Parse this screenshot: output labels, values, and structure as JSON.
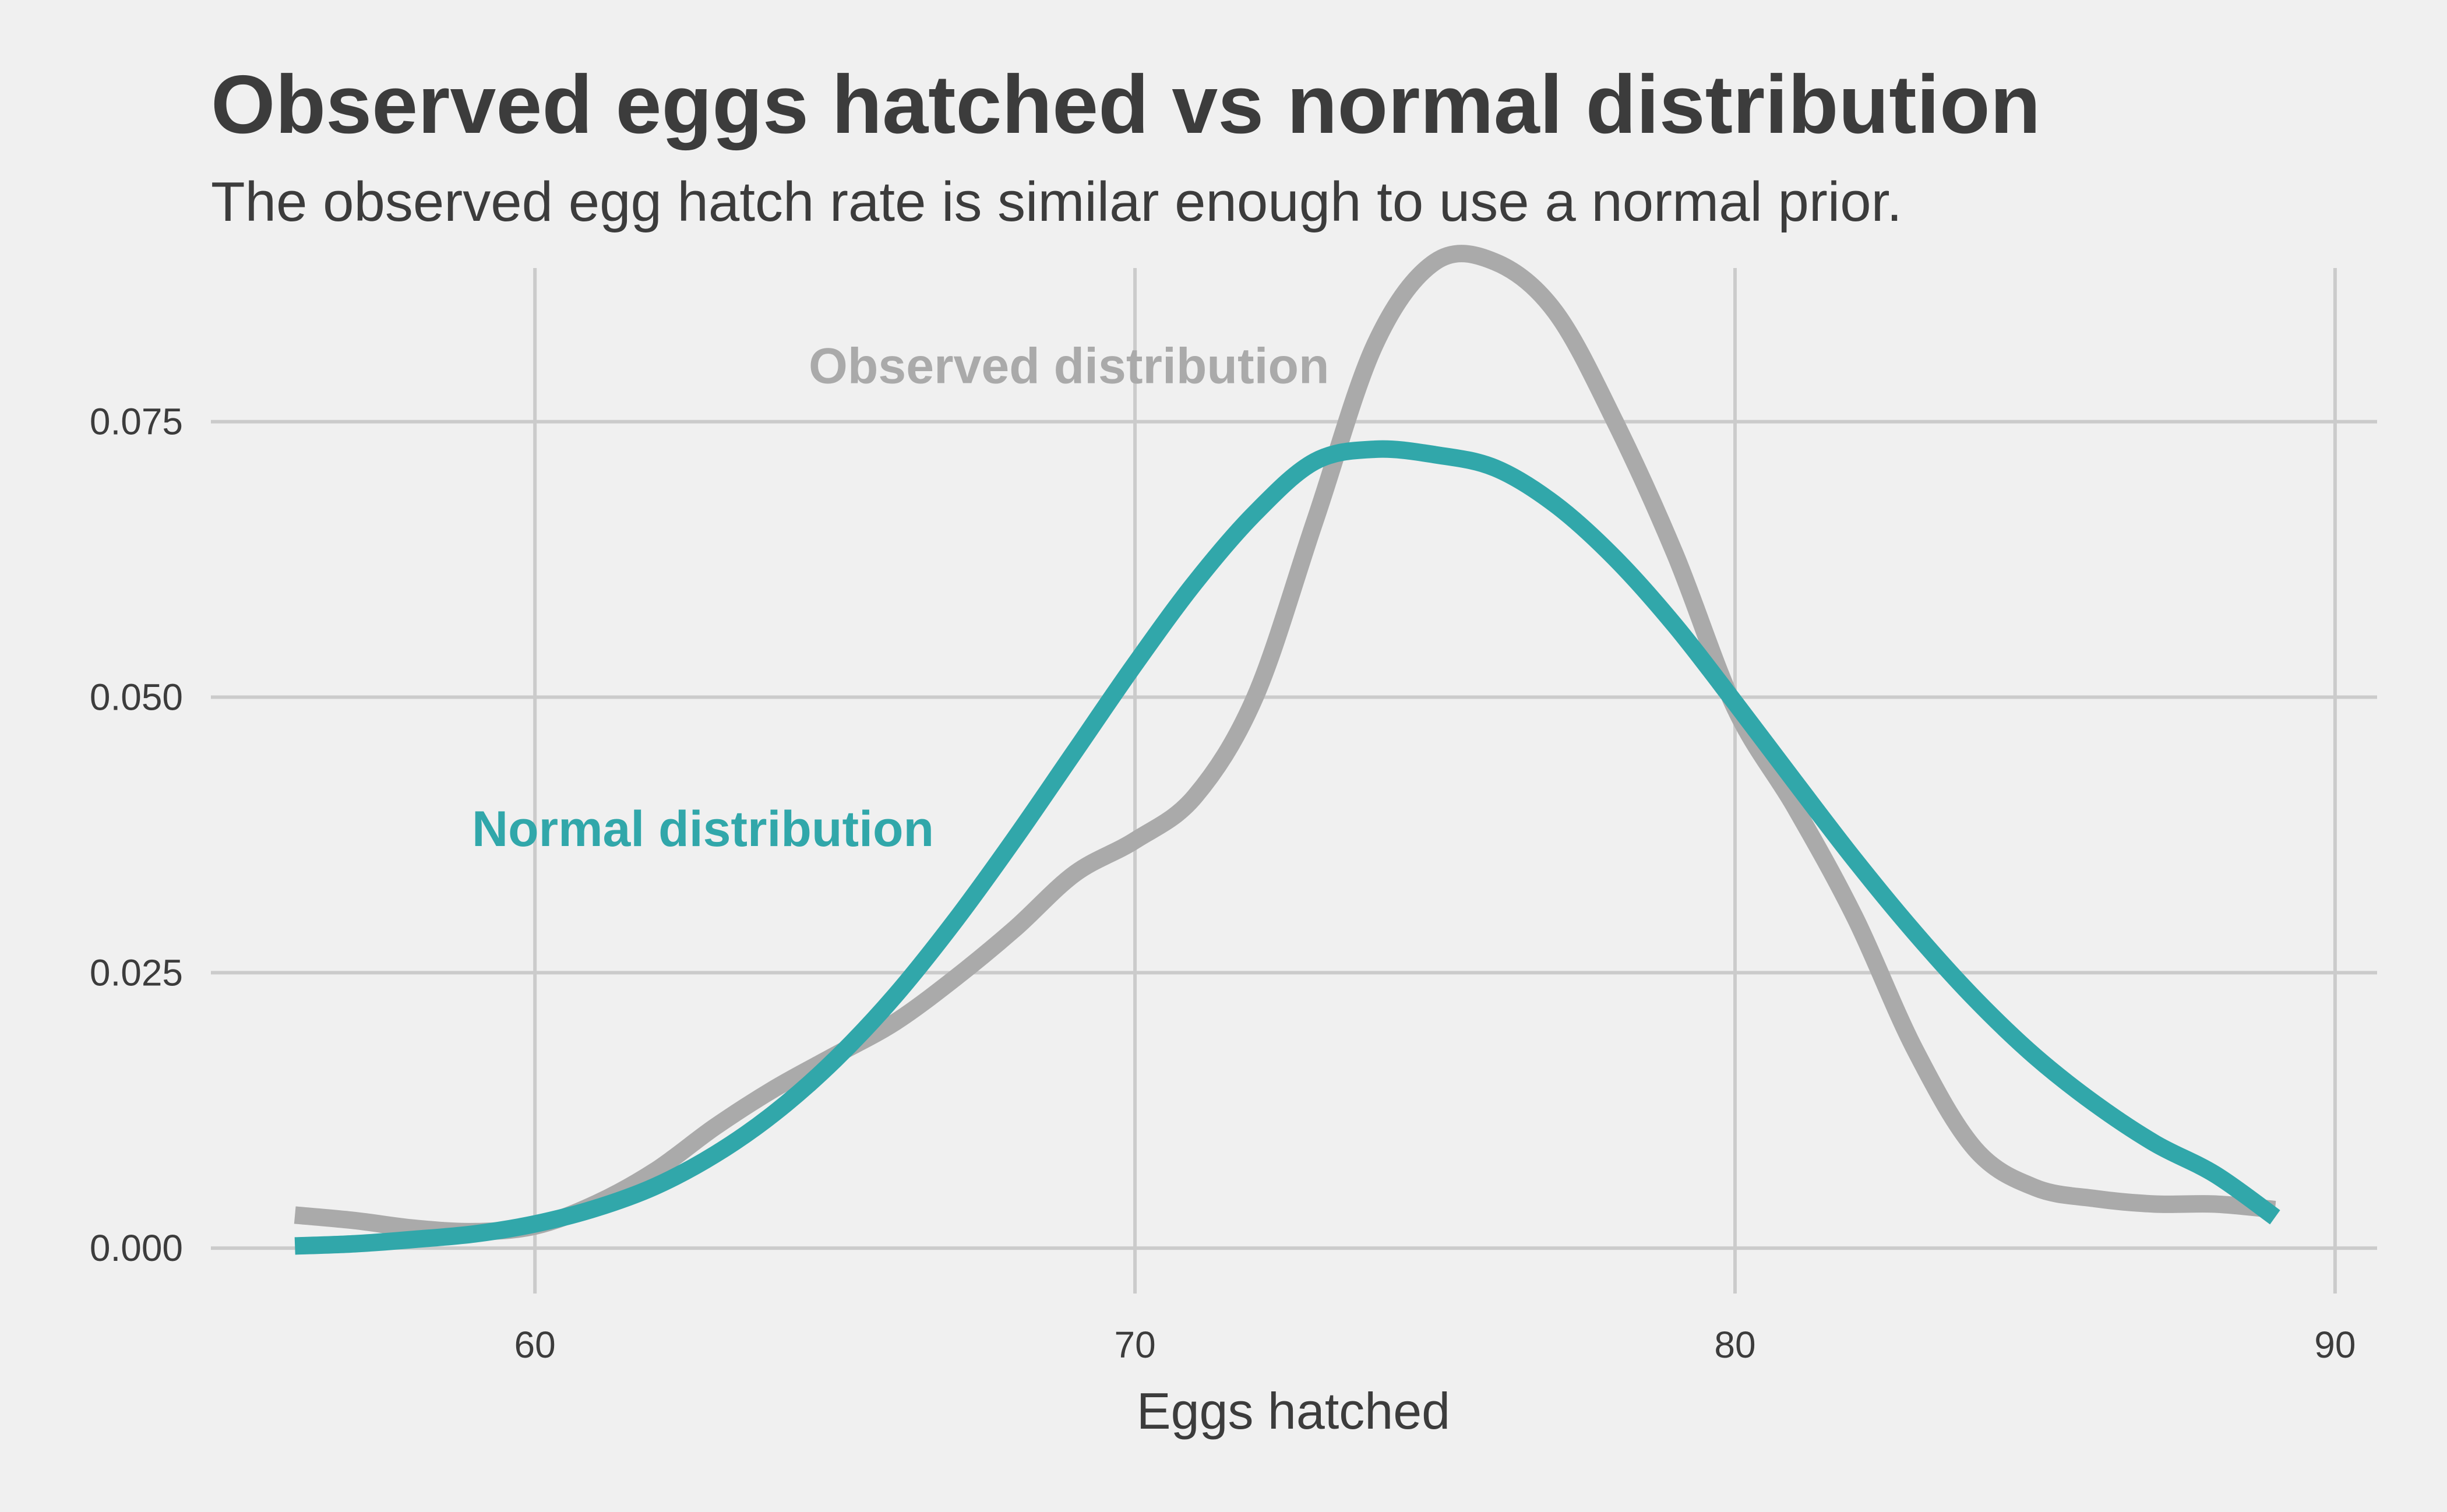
{
  "header": {
    "title": "Observed eggs hatched vs normal distribution",
    "subtitle": "The observed egg hatch rate is similar enough to use a normal prior."
  },
  "chart_data": {
    "type": "line",
    "title": "Observed eggs hatched vs normal distribution",
    "subtitle": "The observed egg hatch rate is similar enough to use a normal prior.",
    "xlabel": "Eggs hatched",
    "ylabel": "",
    "xlim": [
      54.6,
      90.7
    ],
    "ylim": [
      -0.002,
      0.09
    ],
    "xticks": [
      60,
      70,
      80,
      90
    ],
    "xtick_labels": [
      "60",
      "70",
      "80",
      "90"
    ],
    "yticks": [
      0.0,
      0.025,
      0.05,
      0.075
    ],
    "ytick_labels": [
      "0.000",
      "0.025",
      "0.050",
      "0.075"
    ],
    "grid": true,
    "legend": "direct labels on plot",
    "series": [
      {
        "name": "Observed distribution",
        "color": "#aaaaaa",
        "label_at": [
          68.9,
          0.0785
        ],
        "x": [
          56,
          57,
          58,
          59,
          60,
          61,
          62,
          63,
          64,
          65,
          66,
          67,
          68,
          69,
          70,
          71,
          72,
          73,
          74,
          75,
          76,
          77,
          78,
          79,
          80,
          81,
          82,
          83,
          84,
          85,
          86,
          87,
          88,
          89
        ],
        "y": [
          0.003,
          0.0025,
          0.0018,
          0.0015,
          0.002,
          0.004,
          0.007,
          0.011,
          0.0145,
          0.0175,
          0.0205,
          0.0245,
          0.029,
          0.034,
          0.037,
          0.041,
          0.05,
          0.066,
          0.082,
          0.0895,
          0.0895,
          0.085,
          0.075,
          0.063,
          0.049,
          0.04,
          0.03,
          0.018,
          0.009,
          0.0055,
          0.0045,
          0.004,
          0.004,
          0.0035
        ]
      },
      {
        "name": "Normal distribution",
        "color": "#31a7aa",
        "label_at": [
          62.8,
          0.0365
        ],
        "x": [
          56,
          57,
          58,
          59,
          60,
          61,
          62,
          63,
          64,
          65,
          66,
          67,
          68,
          69,
          70,
          71,
          72,
          73,
          74,
          75,
          76,
          77,
          78,
          79,
          80,
          81,
          82,
          83,
          84,
          85,
          86,
          87,
          88,
          89
        ],
        "y": [
          0.0002,
          0.0004,
          0.0008,
          0.0013,
          0.0022,
          0.0036,
          0.0056,
          0.0085,
          0.0123,
          0.0171,
          0.0229,
          0.0297,
          0.0372,
          0.0451,
          0.053,
          0.0604,
          0.0667,
          0.0714,
          0.0725,
          0.072,
          0.0708,
          0.0675,
          0.0626,
          0.0565,
          0.0495,
          0.0423,
          0.0352,
          0.0286,
          0.0226,
          0.0174,
          0.0131,
          0.0095,
          0.0067,
          0.0028
        ]
      }
    ]
  }
}
